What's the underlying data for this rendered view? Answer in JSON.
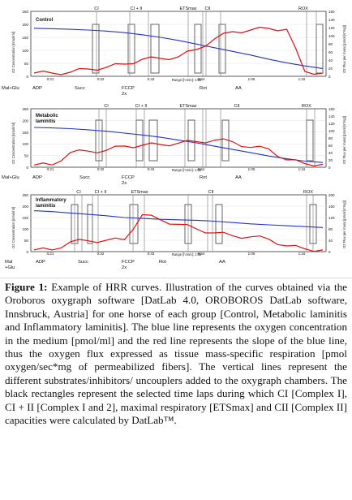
{
  "figure": {
    "label": "Figure 1:",
    "caption": "Example of HRR curves. Illustration of the curves obtained via the Oroboros oxygraph software [DatLab 4.0, OROBOROS DatLab software, Innsbruck, Austria] for one horse of each group [Control, Metabolic laminitis and Inflammatory laminitis]. The blue line represents the oxygen concentration in the medium [pmol/ml] and the red line represents the slope of the blue line, thus the oxygen flux expressed as tissue mass-specific respiration [pmol oxygen/sec*mg of permeabilized fibers]. The vertical lines represent the different substrates/inhibitors/ uncouplers added to the oxygraph chambers. The black rectangles represent the selected time laps during which CI [Complex I], CI + II [Complex I and 2], maximal respiratory [ETSmax] and CII [Complex II] capacities were calculated by DatLab™."
  },
  "colors": {
    "oxygen_line": "#2233cc",
    "flux_line": "#e01010",
    "marker": "#222222"
  },
  "panels": [
    {
      "name": "Control",
      "left_axis_label": "O2 Concentration [nmol/ml]",
      "right_axis_label": "O2 Flux per mass [pmol/(s*mg)]",
      "left_ticks": [
        "250",
        "200",
        "150",
        "100",
        "50",
        "0"
      ],
      "right_ticks": [
        "160",
        "140",
        "120",
        "100",
        "80",
        "60",
        "40",
        "20",
        "0"
      ],
      "time_ticks": [
        "0:21",
        "0:32",
        "0:43",
        "0:54",
        "1:05",
        "1:16"
      ],
      "range_label": "Range [h:min]: 1:00",
      "top_markers": [
        "CI",
        "CI + II",
        "ETSmax",
        "CII",
        "ROX"
      ],
      "bottom_labels": [
        "Mal+Glu",
        "ADP",
        "Succ",
        "FCCP\n2x",
        "Rot",
        "AA"
      ],
      "chart_data": {
        "type": "line",
        "x_unit": "time",
        "series": [
          {
            "name": "O2 concentration",
            "values": [
              185,
              183,
              181,
              178,
              174,
              168,
              160,
              150,
              138,
              124,
              110,
              96,
              82,
              66,
              52,
              40,
              30
            ]
          },
          {
            "name": "O2 flux",
            "values": [
              8,
              8,
              10,
              18,
              22,
              30,
              42,
              44,
              48,
              66,
              92,
              110,
              114,
              118,
              116,
              12,
              8
            ]
          }
        ]
      }
    },
    {
      "name": "Metabolic\nlaminitis",
      "left_axis_label": "O2 Concentration [nmol/ml]",
      "right_axis_label": "O2 Flux per mass [pmol/(s*mg)]",
      "left_ticks": [
        "250",
        "200",
        "150",
        "100",
        "50",
        "0"
      ],
      "right_ticks": [
        "160",
        "140",
        "120",
        "100",
        "80",
        "60",
        "40",
        "20",
        "0"
      ],
      "time_ticks": [
        "0:21",
        "0:32",
        "0:43",
        "0:54",
        "1:05",
        "1:16"
      ],
      "range_label": "Range [h:min]: 1:00",
      "top_markers": [
        "CI",
        "CI + II",
        "ETSmax",
        "CII",
        "ROX"
      ],
      "bottom_labels": [
        "Mal+Glu",
        "ADP",
        "Succ",
        "FCCP\n2x",
        "Rot",
        "AA"
      ],
      "chart_data": {
        "type": "line",
        "x_unit": "time",
        "series": [
          {
            "name": "O2 concentration",
            "values": [
              170,
              168,
              165,
              160,
              154,
              146,
              138,
              128,
              116,
              104,
              90,
              76,
              62,
              48,
              36,
              26,
              20
            ]
          },
          {
            "name": "O2 flux",
            "values": [
              6,
              6,
              40,
              44,
              46,
              58,
              60,
              62,
              66,
              70,
              74,
              70,
              54,
              50,
              20,
              10,
              8
            ]
          }
        ]
      }
    },
    {
      "name": "Inflammatory\nlaminitis",
      "left_axis_label": "O2 Concentration [nmol/ml]",
      "right_axis_label": "O2 Flux per mass [pmol/(s*mg)]",
      "left_ticks": [
        "250",
        "200",
        "150",
        "100",
        "50",
        "0"
      ],
      "right_ticks": [
        "200",
        "160",
        "120",
        "80",
        "40",
        "0"
      ],
      "time_ticks": [
        "0:21",
        "0:32",
        "0:43",
        "0:54",
        "1:05",
        "1:16"
      ],
      "range_label": "Range [h:min]: 1:05",
      "top_markers": [
        "CI",
        "CI + II",
        "ETSmax",
        "CII",
        "ROX"
      ],
      "bottom_labels": [
        "Mal\n+Glu",
        "ADP",
        "Succ",
        "FCCP\n2x",
        "Rot",
        "AA"
      ],
      "chart_data": {
        "type": "line",
        "x_unit": "time",
        "series": [
          {
            "name": "O2 concentration",
            "values": [
              180,
              176,
              170,
              164,
              158,
              150,
              146,
              142,
              140,
              138,
              134,
              128,
              122,
              118,
              114,
              110,
              106
            ]
          },
          {
            "name": "O2 flux",
            "values": [
              6,
              6,
              34,
              38,
              40,
              42,
              130,
              112,
              96,
              80,
              66,
              56,
              52,
              44,
              20,
              10,
              6
            ]
          }
        ]
      }
    }
  ]
}
